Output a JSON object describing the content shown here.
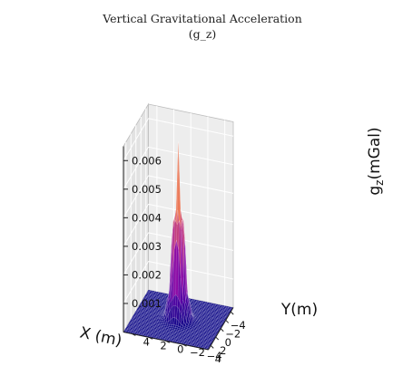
{
  "chart_data": {
    "type": "surface3d",
    "title": "Vertical Gravitational Acceleration",
    "subtitle": "(g_z)",
    "xlabel": "X (m)",
    "ylabel": "Y(m)",
    "zlabel": "g_z(mGal)",
    "xlim": [
      -5,
      5
    ],
    "ylim": [
      -5,
      5
    ],
    "zlim": [
      0,
      0.0065
    ],
    "x_ticks": [
      -4,
      -2,
      0,
      2,
      4
    ],
    "y_ticks": [
      -4,
      -2,
      0,
      2,
      4
    ],
    "z_ticks": [
      0.001,
      0.002,
      0.003,
      0.004,
      0.005,
      0.006
    ],
    "x_tick_labels": [
      "−4",
      "−2",
      "0",
      "2",
      "4"
    ],
    "y_tick_labels": [
      "−4",
      "−2",
      "0",
      "2",
      "4"
    ],
    "z_tick_labels": [
      "0.001",
      "0.002",
      "0.003",
      "0.004",
      "0.005",
      "0.006"
    ],
    "peak_value": 0.0062,
    "peak_location": [
      0,
      0
    ],
    "colormap": "plasma",
    "grid": true,
    "grid_resolution": 40
  },
  "colors": {
    "pane_back": "#ededed",
    "pane_side": "#e2e2e2",
    "pane_floor": "#e8e8e8",
    "grid_line": "#ffffff",
    "pane_edge": "#bdbdbd",
    "axis_line": "#222222",
    "surface_edge": "#ffffff"
  }
}
